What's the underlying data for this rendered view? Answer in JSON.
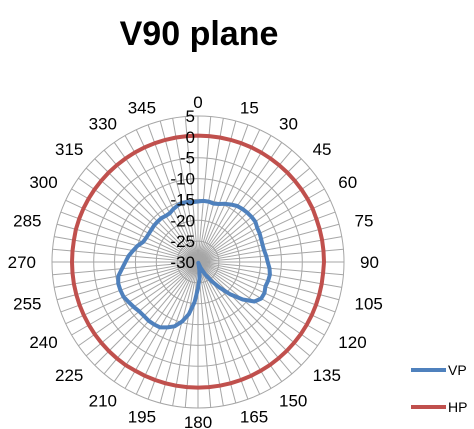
{
  "chart_data": {
    "type": "radar",
    "title": "V90 plane",
    "angle_ticks": [
      "0",
      "15",
      "30",
      "45",
      "60",
      "75",
      "90",
      "105",
      "120",
      "135",
      "150",
      "165",
      "180",
      "195",
      "210",
      "225",
      "240",
      "255",
      "270",
      "285",
      "300",
      "315",
      "330",
      "345"
    ],
    "radial_ticks": [
      "-30",
      "-25",
      "-20",
      "-15",
      "-10",
      "-5",
      "0",
      "5"
    ],
    "rlim": [
      -30,
      5
    ],
    "angle_step": 5,
    "legend_position": "right",
    "grid": true,
    "series": [
      {
        "name": "VP",
        "color": "#4F81BD",
        "values": [
          -15.5,
          -15.3,
          -15.3,
          -15.5,
          -15.2,
          -14.6,
          -14.1,
          -13.6,
          -13.4,
          -13.3,
          -13.2,
          -13.2,
          -13.6,
          -13.7,
          -13.9,
          -14,
          -13.9,
          -13.6,
          -13.3,
          -12.8,
          -12.5,
          -12.6,
          -12.8,
          -12.4,
          -12.5,
          -13.5,
          -16,
          -19,
          -22,
          -24.5,
          -26.5,
          -28.5,
          -29.8,
          -29.5,
          -28,
          -26,
          -23.7,
          -20.3,
          -17.3,
          -15.2,
          -13.6,
          -12.7,
          -11.9,
          -11.7,
          -11.6,
          -11.7,
          -11.6,
          -11.2,
          -10.8,
          -10.3,
          -10.2,
          -10.2,
          -10.6,
          -11.7,
          -12.6,
          -13.3,
          -14.2,
          -15,
          -16,
          -16.3,
          -16.4,
          -16.4,
          -16.3,
          -16.3,
          -16.3,
          -16.5,
          -16.5,
          -16,
          -15.6,
          -15.3,
          -15.4,
          -15.6
        ]
      },
      {
        "name": "HP",
        "color": "#C0504D",
        "values": [
          0.3,
          0.3,
          0.3,
          0.3,
          0.3,
          0.3,
          0.3,
          0.3,
          0.3,
          0.3,
          0.3,
          0.3,
          0.3,
          0.3,
          0.2,
          0.2,
          0.2,
          0.2,
          0.2,
          0.1,
          0.1,
          0.1,
          0.1,
          0.1,
          0.1,
          0.1,
          0.1,
          0.1,
          0.1,
          0.1,
          0.1,
          0.1,
          0.1,
          0.1,
          0.1,
          0.1,
          0.1,
          0.1,
          0.1,
          0.1,
          0.1,
          0.1,
          0.1,
          0.2,
          0.2,
          0.2,
          0.2,
          0.2,
          0.2,
          0.2,
          0.2,
          0.2,
          0.2,
          0.2,
          0.2,
          0.2,
          0.2,
          0.3,
          0.3,
          0.3,
          0.3,
          0.3,
          0.3,
          0.3,
          0.3,
          0.3,
          0.3,
          0.3,
          0.3,
          0.3,
          0.3,
          0.3
        ]
      }
    ]
  }
}
